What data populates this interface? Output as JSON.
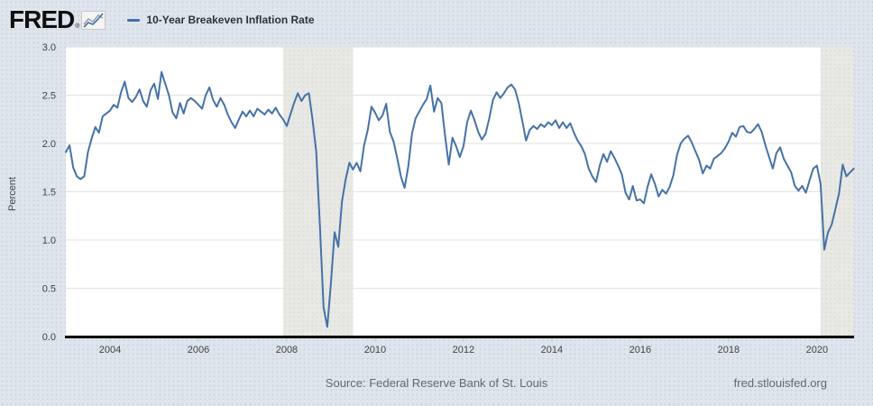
{
  "header": {
    "logo": "FRED",
    "registered_mark": "®",
    "legend": {
      "swatch_color": "#4572a7",
      "label": "10-Year Breakeven Inflation Rate"
    }
  },
  "footer": {
    "source": "Source: Federal Reserve Bank of St. Louis",
    "site": "fred.stlouisfed.org"
  },
  "colors": {
    "page_background": "#dfe5ed",
    "plot_background": "#ffffff",
    "line": "#4572a7",
    "recession_band": "#e8e8e4",
    "gridline": "#e2e2e2",
    "axis_line": "#000000",
    "tick_mark": "#c3cad2",
    "tick_label": "#3f4347",
    "footer_text": "#65696e"
  },
  "chart_data": {
    "type": "line",
    "title": "10-Year Breakeven Inflation Rate",
    "xlabel": "",
    "ylabel": "Percent",
    "xlim": [
      2003.0,
      2020.84
    ],
    "ylim": [
      0.0,
      3.0
    ],
    "x_ticks": [
      2004,
      2006,
      2008,
      2010,
      2012,
      2014,
      2016,
      2018,
      2020
    ],
    "y_ticks": [
      0.0,
      0.5,
      1.0,
      1.5,
      2.0,
      2.5,
      3.0
    ],
    "grid": "horizontal",
    "legend_position": "top-left-header",
    "recession_bands": [
      [
        2007.92,
        2009.5
      ],
      [
        2020.08,
        2020.84
      ]
    ],
    "series": [
      {
        "name": "10-Year Breakeven Inflation Rate",
        "color": "#4572a7",
        "frequency": "monthly",
        "start_year": 2003.0,
        "values": [
          1.91,
          1.98,
          1.75,
          1.66,
          1.63,
          1.66,
          1.91,
          2.05,
          2.17,
          2.11,
          2.28,
          2.31,
          2.34,
          2.4,
          2.37,
          2.53,
          2.64,
          2.47,
          2.43,
          2.48,
          2.56,
          2.44,
          2.38,
          2.55,
          2.62,
          2.46,
          2.74,
          2.62,
          2.5,
          2.32,
          2.26,
          2.42,
          2.31,
          2.44,
          2.47,
          2.44,
          2.4,
          2.36,
          2.5,
          2.58,
          2.45,
          2.38,
          2.47,
          2.4,
          2.3,
          2.22,
          2.16,
          2.25,
          2.33,
          2.28,
          2.34,
          2.28,
          2.36,
          2.33,
          2.3,
          2.35,
          2.31,
          2.37,
          2.3,
          2.25,
          2.18,
          2.3,
          2.42,
          2.52,
          2.44,
          2.5,
          2.52,
          2.25,
          1.92,
          1.15,
          0.3,
          0.1,
          0.55,
          1.08,
          0.93,
          1.4,
          1.63,
          1.8,
          1.73,
          1.8,
          1.71,
          1.98,
          2.14,
          2.38,
          2.32,
          2.24,
          2.29,
          2.41,
          2.12,
          2.02,
          1.85,
          1.66,
          1.54,
          1.76,
          2.1,
          2.26,
          2.33,
          2.4,
          2.46,
          2.6,
          2.33,
          2.47,
          2.42,
          2.08,
          1.78,
          2.06,
          1.97,
          1.86,
          1.97,
          2.22,
          2.34,
          2.24,
          2.12,
          2.04,
          2.1,
          2.26,
          2.45,
          2.53,
          2.47,
          2.52,
          2.58,
          2.61,
          2.56,
          2.42,
          2.23,
          2.03,
          2.14,
          2.18,
          2.15,
          2.2,
          2.17,
          2.22,
          2.19,
          2.24,
          2.16,
          2.22,
          2.16,
          2.21,
          2.11,
          2.03,
          1.97,
          1.89,
          1.74,
          1.66,
          1.6,
          1.77,
          1.89,
          1.81,
          1.92,
          1.85,
          1.77,
          1.68,
          1.49,
          1.42,
          1.56,
          1.41,
          1.42,
          1.38,
          1.55,
          1.68,
          1.58,
          1.45,
          1.52,
          1.48,
          1.55,
          1.67,
          1.88,
          2.0,
          2.05,
          2.08,
          2.01,
          1.92,
          1.83,
          1.69,
          1.77,
          1.74,
          1.84,
          1.87,
          1.9,
          1.95,
          2.02,
          2.11,
          2.07,
          2.17,
          2.18,
          2.12,
          2.11,
          2.15,
          2.2,
          2.12,
          1.98,
          1.86,
          1.74,
          1.9,
          1.96,
          1.84,
          1.77,
          1.7,
          1.56,
          1.51,
          1.56,
          1.49,
          1.62,
          1.74,
          1.77,
          1.58,
          0.9,
          1.08,
          1.16,
          1.32,
          1.48,
          1.78,
          1.66,
          1.7,
          1.74
        ]
      }
    ]
  }
}
